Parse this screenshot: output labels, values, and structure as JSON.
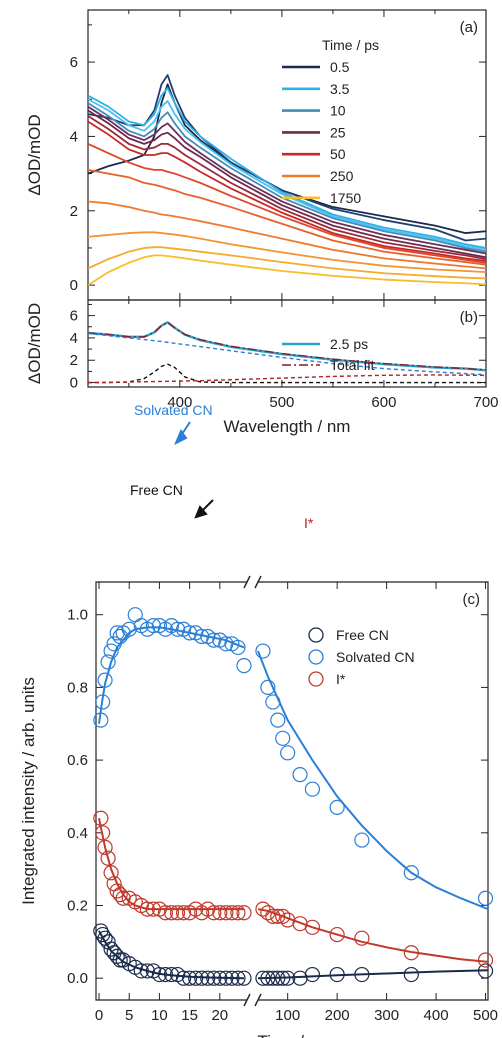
{
  "chart_data": [
    {
      "type": "line",
      "panel_label": "(a)",
      "ylabel": "ΔOD/mOD",
      "xlim": [
        310,
        700
      ],
      "ylim": [
        -0.4,
        7.4
      ],
      "yticks": [
        0,
        2,
        4,
        6
      ],
      "legend_title": "Time / ps",
      "legend_position": "top-right",
      "x": [
        310,
        330,
        350,
        365,
        375,
        382,
        388,
        395,
        405,
        420,
        450,
        500,
        550,
        600,
        650,
        680,
        700
      ],
      "series": [
        {
          "name": "0.5",
          "color": "#1a2a4a",
          "values": [
            3.0,
            3.2,
            3.35,
            3.5,
            4.0,
            4.9,
            5.4,
            4.9,
            4.3,
            3.9,
            3.3,
            2.55,
            2.1,
            1.85,
            1.6,
            1.4,
            1.45
          ]
        },
        {
          "color": "#1f3f6f",
          "values": [
            4.6,
            4.5,
            4.3,
            4.3,
            4.7,
            5.4,
            5.65,
            5.1,
            4.5,
            4.0,
            3.3,
            2.55,
            2.05,
            1.75,
            1.5,
            1.2,
            1.25
          ]
        },
        {
          "name": "3.5",
          "color": "#2fb0e8",
          "values": [
            5.1,
            4.8,
            4.4,
            4.3,
            4.6,
            5.1,
            5.3,
            4.9,
            4.4,
            4.0,
            3.4,
            2.5,
            1.9,
            1.55,
            1.3,
            1.1,
            1.0
          ]
        },
        {
          "color": "#4cc0ee",
          "values": [
            5.0,
            4.7,
            4.3,
            4.15,
            4.4,
            4.8,
            4.95,
            4.6,
            4.2,
            3.85,
            3.25,
            2.45,
            1.85,
            1.5,
            1.25,
            1.05,
            0.95
          ]
        },
        {
          "name": "10",
          "color": "#3f8fb8",
          "values": [
            4.9,
            4.55,
            4.15,
            4.0,
            4.2,
            4.5,
            4.65,
            4.35,
            4.0,
            3.7,
            3.15,
            2.35,
            1.8,
            1.45,
            1.2,
            1.0,
            0.9
          ]
        },
        {
          "color": "#6a3060",
          "values": [
            4.8,
            4.45,
            4.05,
            3.9,
            4.05,
            4.25,
            4.35,
            4.15,
            3.85,
            3.55,
            3.0,
            2.25,
            1.7,
            1.35,
            1.1,
            0.95,
            0.85
          ]
        },
        {
          "name": "25",
          "color": "#6e2a4c",
          "values": [
            4.7,
            4.35,
            3.95,
            3.8,
            3.9,
            4.05,
            4.1,
            3.95,
            3.7,
            3.45,
            2.9,
            2.15,
            1.6,
            1.25,
            1.0,
            0.85,
            0.75
          ]
        },
        {
          "color": "#9a2a3a",
          "values": [
            4.55,
            4.2,
            3.8,
            3.65,
            3.7,
            3.8,
            3.8,
            3.7,
            3.5,
            3.25,
            2.75,
            2.05,
            1.5,
            1.15,
            0.92,
            0.8,
            0.7
          ]
        },
        {
          "name": "50",
          "color": "#c62828",
          "values": [
            4.4,
            4.05,
            3.65,
            3.5,
            3.5,
            3.55,
            3.55,
            3.45,
            3.3,
            3.05,
            2.6,
            1.95,
            1.4,
            1.05,
            0.85,
            0.72,
            0.65
          ]
        },
        {
          "color": "#e0452a",
          "values": [
            3.8,
            3.55,
            3.3,
            3.15,
            3.1,
            3.1,
            3.05,
            3.0,
            2.9,
            2.75,
            2.4,
            1.85,
            1.35,
            1.0,
            0.8,
            0.68,
            0.6
          ]
        },
        {
          "color": "#e8602c",
          "values": [
            3.1,
            3.0,
            2.9,
            2.75,
            2.7,
            2.65,
            2.6,
            2.55,
            2.45,
            2.35,
            2.1,
            1.65,
            1.2,
            0.9,
            0.72,
            0.62,
            0.55
          ]
        },
        {
          "name": "250",
          "color": "#ee7a30",
          "values": [
            2.25,
            2.2,
            2.1,
            2.0,
            1.95,
            1.9,
            1.88,
            1.85,
            1.8,
            1.72,
            1.55,
            1.25,
            0.95,
            0.72,
            0.58,
            0.5,
            0.45
          ]
        },
        {
          "color": "#f39433",
          "values": [
            1.3,
            1.35,
            1.4,
            1.42,
            1.42,
            1.4,
            1.38,
            1.36,
            1.32,
            1.25,
            1.1,
            0.88,
            0.68,
            0.52,
            0.42,
            0.38,
            0.35
          ]
        },
        {
          "color": "#f6aa30",
          "values": [
            0.45,
            0.7,
            0.9,
            1.0,
            1.02,
            1.02,
            1.0,
            0.98,
            0.95,
            0.9,
            0.8,
            0.62,
            0.45,
            0.32,
            0.24,
            0.2,
            0.18
          ]
        },
        {
          "name": "1750",
          "color": "#f7bd2a",
          "values": [
            0.0,
            0.35,
            0.6,
            0.75,
            0.8,
            0.8,
            0.78,
            0.76,
            0.72,
            0.66,
            0.55,
            0.38,
            0.25,
            0.15,
            0.08,
            0.05,
            0.02
          ]
        }
      ]
    },
    {
      "type": "line",
      "panel_label": "(b)",
      "xlabel": "Wavelength / nm",
      "ylabel": "ΔOD/mOD",
      "xlim": [
        310,
        700
      ],
      "ylim": [
        -0.4,
        7.4
      ],
      "xticks": [
        400,
        500,
        600,
        700
      ],
      "yticks": [
        0,
        2,
        4,
        6
      ],
      "legend_position": "top-right",
      "x": [
        310,
        330,
        350,
        365,
        375,
        382,
        388,
        395,
        405,
        420,
        450,
        500,
        550,
        600,
        650,
        680,
        700
      ],
      "series": [
        {
          "name": "2.5 ps",
          "color": "#2aa3c7",
          "style": "solid",
          "values": [
            4.45,
            4.3,
            4.1,
            4.1,
            4.5,
            5.1,
            5.4,
            4.9,
            4.3,
            3.8,
            3.2,
            2.55,
            2.05,
            1.65,
            1.35,
            1.25,
            1.1
          ]
        },
        {
          "name": "Total fit",
          "color": "#8b1a2a",
          "style": "dashdot",
          "values": [
            4.45,
            4.3,
            4.1,
            4.1,
            4.5,
            5.1,
            5.4,
            4.9,
            4.3,
            3.85,
            3.25,
            2.6,
            2.1,
            1.7,
            1.4,
            1.25,
            1.15
          ]
        },
        {
          "color": "#2b7fd6",
          "style": "dashed",
          "values": [
            4.4,
            4.2,
            4.0,
            3.85,
            3.75,
            3.68,
            3.6,
            3.52,
            3.4,
            3.22,
            2.85,
            2.25,
            1.7,
            1.25,
            0.95,
            0.8,
            0.7
          ]
        },
        {
          "color": "#111111",
          "style": "dashed",
          "values": [
            0.0,
            0.0,
            0.05,
            0.35,
            0.95,
            1.45,
            1.65,
            1.35,
            0.5,
            0.05,
            0.0,
            0.0,
            0.0,
            0.0,
            0.0,
            0.0,
            0.0
          ]
        },
        {
          "color": "#b22222",
          "style": "dashed",
          "values": [
            0.0,
            0.02,
            0.05,
            0.07,
            0.09,
            0.1,
            0.11,
            0.12,
            0.14,
            0.17,
            0.25,
            0.4,
            0.55,
            0.65,
            0.68,
            0.66,
            0.64
          ]
        }
      ],
      "annotations": [
        {
          "text": "Solvated CN",
          "color": "#2b7fd6"
        },
        {
          "text": "Free CN",
          "color": "#111111"
        },
        {
          "text": "I*",
          "color": "#b22222"
        }
      ]
    },
    {
      "type": "scatter",
      "panel_label": "(c)",
      "xlabel": "Time / ps",
      "ylabel": "Integrated intensity / arb. units",
      "ylim": [
        -0.06,
        1.09
      ],
      "yticks": [
        0.0,
        0.2,
        0.4,
        0.6,
        0.8,
        1.0
      ],
      "broken_x_axis": true,
      "segments": [
        {
          "xlim": [
            -0.5,
            24.5
          ],
          "xticks": [
            0,
            5,
            10,
            15,
            20
          ]
        },
        {
          "xlim": [
            40,
            505
          ],
          "xticks": [
            100,
            200,
            300,
            400,
            500
          ]
        }
      ],
      "legend_position": "top-right",
      "series": [
        {
          "name": "Free CN",
          "color": "#1a2a4a",
          "x": [
            0.3,
            0.6,
            1.0,
            1.5,
            2.0,
            2.5,
            3.0,
            3.5,
            4.0,
            5,
            6,
            7,
            8,
            9,
            10,
            11,
            12,
            13,
            14,
            15,
            16,
            17,
            18,
            19,
            20,
            21,
            22,
            23,
            24,
            50,
            60,
            70,
            80,
            90,
            100,
            125,
            150,
            200,
            250,
            350,
            500
          ],
          "values": [
            0.13,
            0.12,
            0.11,
            0.1,
            0.08,
            0.07,
            0.06,
            0.05,
            0.05,
            0.04,
            0.03,
            0.02,
            0.02,
            0.02,
            0.01,
            0.01,
            0.01,
            0.01,
            0.0,
            0.0,
            0.0,
            0.0,
            0.0,
            0.0,
            0.0,
            0.0,
            0.0,
            0.0,
            0.0,
            0.0,
            0.0,
            0.0,
            0.0,
            0.0,
            0.0,
            0.0,
            0.01,
            0.01,
            0.01,
            0.01,
            0.02
          ],
          "fit_x": [
            0,
            1,
            2,
            3,
            4,
            6,
            8,
            10,
            12,
            15,
            18,
            21,
            24,
            40,
            100,
            200,
            300,
            400,
            505
          ],
          "fit_values": [
            0.13,
            0.1,
            0.075,
            0.06,
            0.045,
            0.03,
            0.02,
            0.012,
            0.008,
            0.004,
            0.002,
            0.001,
            0.0,
            0.0,
            0.002,
            0.008,
            0.013,
            0.018,
            0.022
          ]
        },
        {
          "name": "Solvated CN",
          "color": "#2b7fd6",
          "x": [
            0.3,
            0.6,
            1.0,
            1.5,
            2.0,
            2.5,
            3.0,
            3.5,
            4.0,
            5,
            6,
            7,
            8,
            9,
            10,
            11,
            12,
            13,
            14,
            15,
            16,
            17,
            18,
            19,
            20,
            21,
            22,
            23,
            24,
            50,
            60,
            70,
            80,
            90,
            100,
            125,
            150,
            200,
            250,
            350,
            500
          ],
          "values": [
            0.71,
            0.76,
            0.82,
            0.87,
            0.9,
            0.92,
            0.95,
            0.94,
            0.95,
            0.96,
            1.0,
            0.97,
            0.96,
            0.97,
            0.97,
            0.96,
            0.97,
            0.96,
            0.96,
            0.95,
            0.95,
            0.94,
            0.94,
            0.93,
            0.93,
            0.92,
            0.92,
            0.91,
            0.86,
            0.9,
            0.8,
            0.76,
            0.71,
            0.66,
            0.62,
            0.56,
            0.52,
            0.47,
            0.38,
            0.29,
            0.22
          ],
          "fit_x": [
            0,
            0.5,
            1,
            2,
            3,
            4,
            5,
            6,
            8,
            10,
            12,
            15,
            18,
            21,
            24,
            40,
            60,
            80,
            100,
            150,
            200,
            250,
            300,
            350,
            400,
            450,
            505
          ],
          "fit_values": [
            0.7,
            0.76,
            0.81,
            0.87,
            0.91,
            0.93,
            0.95,
            0.96,
            0.965,
            0.965,
            0.96,
            0.95,
            0.94,
            0.93,
            0.91,
            0.9,
            0.83,
            0.77,
            0.71,
            0.6,
            0.5,
            0.42,
            0.35,
            0.29,
            0.25,
            0.22,
            0.19
          ]
        },
        {
          "name": "I*",
          "color": "#c0392b",
          "x": [
            0.3,
            0.6,
            1.0,
            1.5,
            2.0,
            2.5,
            3.0,
            3.5,
            4.0,
            5,
            6,
            7,
            8,
            9,
            10,
            11,
            12,
            13,
            14,
            15,
            16,
            17,
            18,
            19,
            20,
            21,
            22,
            23,
            24,
            50,
            60,
            70,
            80,
            90,
            100,
            125,
            150,
            200,
            250,
            350,
            500
          ],
          "values": [
            0.44,
            0.4,
            0.36,
            0.33,
            0.29,
            0.26,
            0.24,
            0.23,
            0.22,
            0.22,
            0.21,
            0.2,
            0.19,
            0.19,
            0.19,
            0.18,
            0.18,
            0.18,
            0.18,
            0.18,
            0.19,
            0.18,
            0.19,
            0.18,
            0.18,
            0.18,
            0.18,
            0.18,
            0.18,
            0.19,
            0.18,
            0.17,
            0.17,
            0.17,
            0.16,
            0.15,
            0.14,
            0.12,
            0.11,
            0.07,
            0.05
          ],
          "fit_x": [
            0,
            0.5,
            1,
            2,
            3,
            4,
            5,
            6,
            8,
            10,
            12,
            15,
            18,
            21,
            24,
            40,
            60,
            80,
            100,
            150,
            200,
            250,
            300,
            350,
            400,
            450,
            505
          ],
          "fit_values": [
            0.44,
            0.4,
            0.36,
            0.3,
            0.26,
            0.23,
            0.21,
            0.2,
            0.19,
            0.19,
            0.19,
            0.19,
            0.19,
            0.19,
            0.19,
            0.19,
            0.185,
            0.175,
            0.165,
            0.14,
            0.12,
            0.1,
            0.085,
            0.072,
            0.062,
            0.052,
            0.045
          ]
        }
      ]
    }
  ]
}
